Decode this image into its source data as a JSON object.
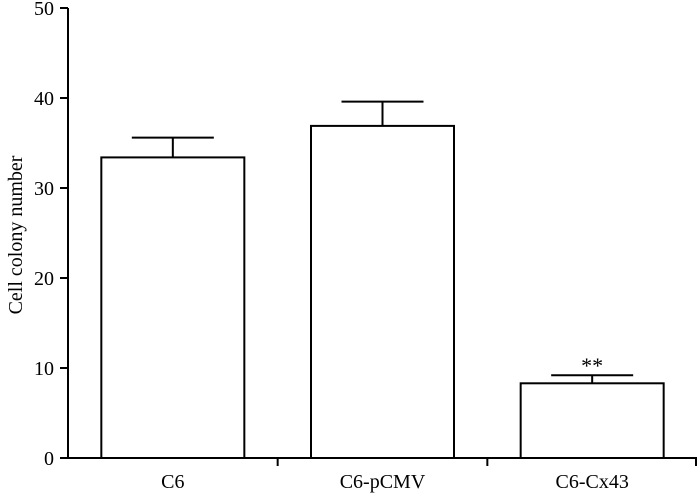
{
  "chart_data": {
    "type": "bar",
    "title": "",
    "xlabel": "",
    "ylabel": "Cell colony number",
    "ylim": [
      0,
      50
    ],
    "yticks": [
      0,
      10,
      20,
      30,
      40,
      50
    ],
    "categories": [
      "C6",
      "C6-pCMV",
      "C6-Cx43"
    ],
    "values": [
      33.4,
      36.9,
      8.3
    ],
    "errors": [
      2.2,
      2.7,
      0.9
    ],
    "annotations": [
      "",
      "",
      "**"
    ],
    "bar_fill": "#ffffff",
    "bar_stroke": "#000000",
    "grid": false,
    "legend": "none"
  }
}
